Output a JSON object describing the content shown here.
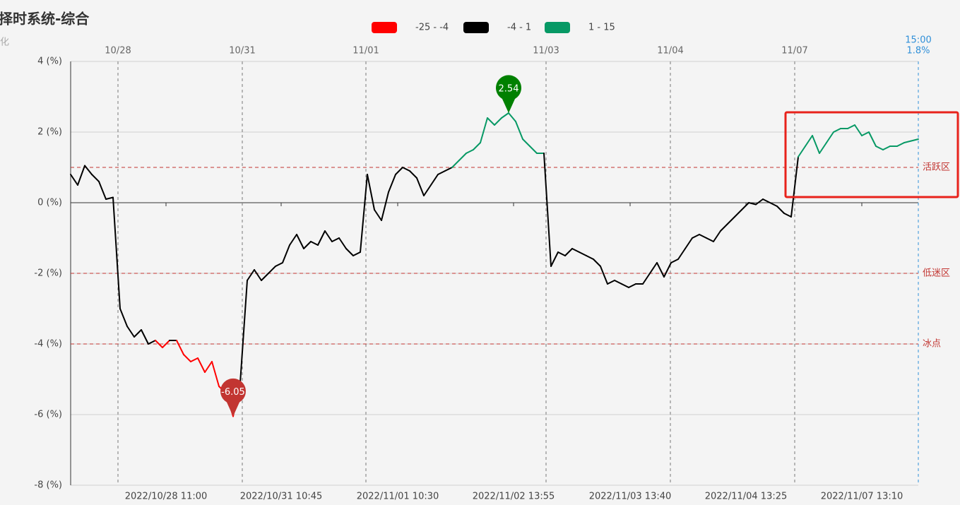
{
  "chart_data": {
    "type": "line",
    "title": "择时系统-综合",
    "subtitle": "化",
    "series": [
      {
        "name": "综合",
        "values": [
          0.8,
          0.5,
          1.05,
          0.8,
          0.6,
          0.1,
          0.15,
          -3.0,
          -3.5,
          -3.8,
          -3.6,
          -4.0,
          -3.9,
          -4.1,
          -3.9,
          -3.9,
          -4.3,
          -4.5,
          -4.4,
          -4.8,
          -4.5,
          -5.2,
          -5.4,
          -6.05,
          -5.1,
          -2.2,
          -1.9,
          -2.2,
          -2.0,
          -1.8,
          -1.7,
          -1.2,
          -0.9,
          -1.3,
          -1.1,
          -1.2,
          -0.8,
          -1.1,
          -1.0,
          -1.3,
          -1.5,
          -1.4,
          0.8,
          -0.2,
          -0.5,
          0.3,
          0.8,
          1.0,
          0.9,
          0.7,
          0.2,
          0.5,
          0.8,
          0.9,
          1.0,
          1.2,
          1.4,
          1.5,
          1.7,
          2.4,
          2.2,
          2.4,
          2.54,
          2.3,
          1.8,
          1.6,
          1.4,
          1.4,
          -1.8,
          -1.4,
          -1.5,
          -1.3,
          -1.4,
          -1.5,
          -1.6,
          -1.8,
          -2.3,
          -2.2,
          -2.3,
          -2.4,
          -2.3,
          -2.3,
          -2.0,
          -1.7,
          -2.1,
          -1.7,
          -1.6,
          -1.3,
          -1.0,
          -0.9,
          -1.0,
          -1.1,
          -0.8,
          -0.6,
          -0.4,
          -0.2,
          0,
          -0.05,
          0.1,
          0,
          -0.1,
          -0.3,
          -0.4,
          1.3,
          1.6,
          1.9,
          1.4,
          1.7,
          2.0,
          2.1,
          2.1,
          2.2,
          1.9,
          2.0,
          1.6,
          1.5,
          1.6,
          1.6,
          1.7,
          1.75,
          1.8
        ]
      }
    ],
    "pieces": [
      {
        "min": -25,
        "max": -4,
        "label": "-25 - -4",
        "color": "#ff0000"
      },
      {
        "min": -4,
        "max": 1,
        "label": "-4 - 1",
        "color": "#000000"
      },
      {
        "min": 1,
        "max": 15,
        "label": "1 - 15",
        "color": "#079965"
      }
    ],
    "xlim": [
      0,
      120
    ],
    "xticks": [
      {
        "value": 13.5,
        "label": "2022/10/28 11:00"
      },
      {
        "value": 29.8,
        "label": "2022/10/31 10:45"
      },
      {
        "value": 46.3,
        "label": "2022/11/01 10:30"
      },
      {
        "value": 62.7,
        "label": "2022/11/02 13:55"
      },
      {
        "value": 79.2,
        "label": "2022/11/03 13:40"
      },
      {
        "value": 95.6,
        "label": "2022/11/04 13:25"
      },
      {
        "value": 112,
        "label": "2022/11/07 13:10"
      }
    ],
    "day_markers": [
      {
        "value": 6.7,
        "label": "10/28"
      },
      {
        "value": 24.3,
        "label": "10/31"
      },
      {
        "value": 41.8,
        "label": "11/01"
      },
      {
        "value": 67.3,
        "label": "11/03"
      },
      {
        "value": 84.9,
        "label": "11/04"
      },
      {
        "value": 102.5,
        "label": "11/07"
      }
    ],
    "end_label": {
      "time": "15:00",
      "value_label": "1.8%"
    },
    "ylim": [
      -8,
      4
    ],
    "yticks": [
      {
        "value": -8,
        "label": "-8 (%)"
      },
      {
        "value": -6,
        "label": "-6 (%)"
      },
      {
        "value": -4,
        "label": "-4 (%)"
      },
      {
        "value": -2,
        "label": "-2 (%)"
      },
      {
        "value": 0,
        "label": "0 (%)"
      },
      {
        "value": 2,
        "label": "2 (%)"
      },
      {
        "value": 4,
        "label": "4 (%)"
      }
    ],
    "grid": true,
    "mark_lines": [
      {
        "value": 1,
        "label": "活跃区"
      },
      {
        "value": -2,
        "label": "低迷区"
      },
      {
        "value": -4,
        "label": "冰点"
      }
    ],
    "mark_line_color": "#c23531",
    "mark_points": [
      {
        "type": "max",
        "color": "#008000"
      },
      {
        "type": "min",
        "color": "#c23531"
      }
    ]
  }
}
